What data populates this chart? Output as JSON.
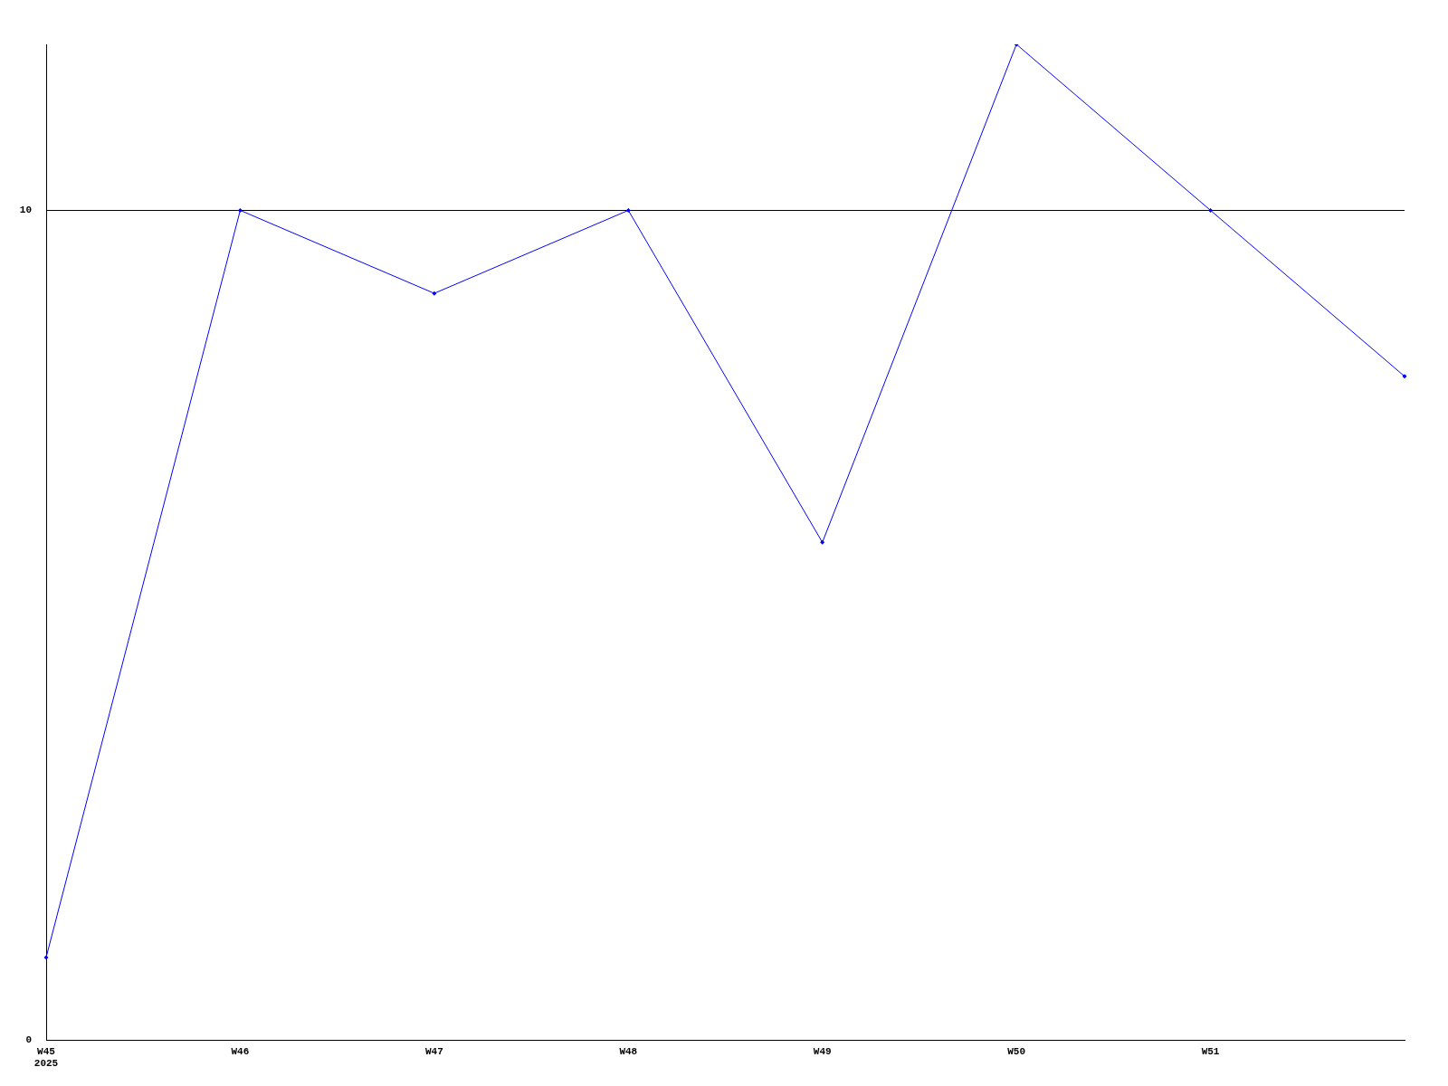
{
  "chart_data": {
    "type": "line",
    "categories": [
      "W45\n2025",
      "W46",
      "W47",
      "W48",
      "W49",
      "W50",
      "W51",
      null
    ],
    "series": [
      {
        "color": "#0000ff",
        "values": [
          1,
          10,
          9,
          10,
          6,
          12,
          10,
          8
        ]
      }
    ],
    "ylim": [
      0,
      12
    ],
    "yticks": [
      0,
      10
    ],
    "grid": "y",
    "legend": false,
    "marker": "diamond",
    "line_style": "solid"
  }
}
